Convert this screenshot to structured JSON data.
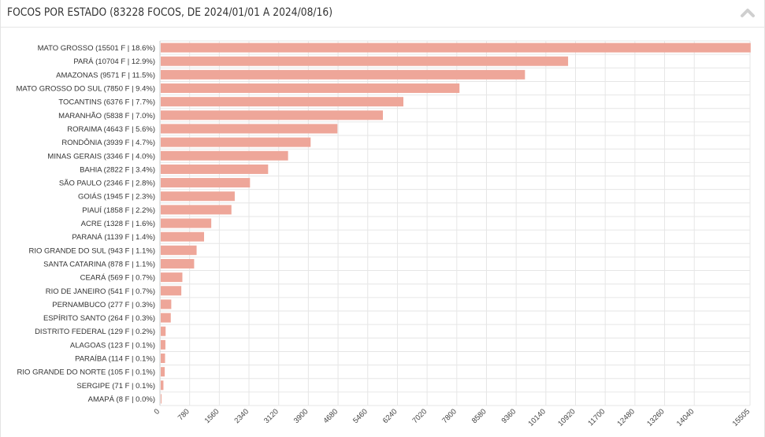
{
  "panel": {
    "title": "FOCOS POR ESTADO (83228 FOCOS, DE 2024/01/01 A 2024/08/16)",
    "collapse_icon": "chevron-up-icon"
  },
  "colors": {
    "bar": "#eea699",
    "grid": "#e6e6e6",
    "axis_text": "#444444",
    "label_text": "#333333"
  },
  "chart_data": {
    "type": "bar",
    "orientation": "horizontal",
    "categories": [
      "MATO GROSSO (15501 F | 18.6%)",
      "PARÁ (10704 F | 12.9%)",
      "AMAZONAS (9571 F | 11.5%)",
      "MATO GROSSO DO SUL (7850 F | 9.4%)",
      "TOCANTINS (6376 F | 7.7%)",
      "MARANHÃO (5838 F | 7.0%)",
      "RORAIMA (4643 F | 5.6%)",
      "RONDÔNIA (3939 F | 4.7%)",
      "MINAS GERAIS (3346 F | 4.0%)",
      "BAHIA (2822 F | 3.4%)",
      "SÃO PAULO (2346 F | 2.8%)",
      "GOIÁS (1945 F | 2.3%)",
      "PIAUÍ (1858 F | 2.2%)",
      "ACRE (1328 F | 1.6%)",
      "PARANÁ (1139 F | 1.4%)",
      "RIO GRANDE DO SUL (943 F | 1.1%)",
      "SANTA CATARINA (878 F | 1.1%)",
      "CEARÁ (569 F | 0.7%)",
      "RIO DE JANEIRO (541 F | 0.7%)",
      "PERNAMBUCO (277 F | 0.3%)",
      "ESPÍRITO SANTO (264 F | 0.3%)",
      "DISTRITO FEDERAL (129 F | 0.2%)",
      "ALAGOAS (123 F | 0.1%)",
      "PARAÍBA (114 F | 0.1%)",
      "RIO GRANDE DO NORTE (105 F | 0.1%)",
      "SERGIPE (71 F | 0.1%)",
      "AMAPÁ (8 F | 0.0%)"
    ],
    "values": [
      15501,
      10704,
      9571,
      7850,
      6376,
      5838,
      4643,
      3939,
      3346,
      2822,
      2346,
      1945,
      1858,
      1328,
      1139,
      943,
      878,
      569,
      541,
      277,
      264,
      129,
      123,
      114,
      105,
      71,
      8
    ],
    "x_ticks": [
      "0",
      "780",
      "1560",
      "2340",
      "3120",
      "3900",
      "4680",
      "5460",
      "6240",
      "7020",
      "7800",
      "8580",
      "9360",
      "10140",
      "10920",
      "11700",
      "12480",
      "13260",
      "14040",
      "15505"
    ],
    "xlim": [
      0,
      15505
    ],
    "grid": true,
    "legend": "none"
  }
}
